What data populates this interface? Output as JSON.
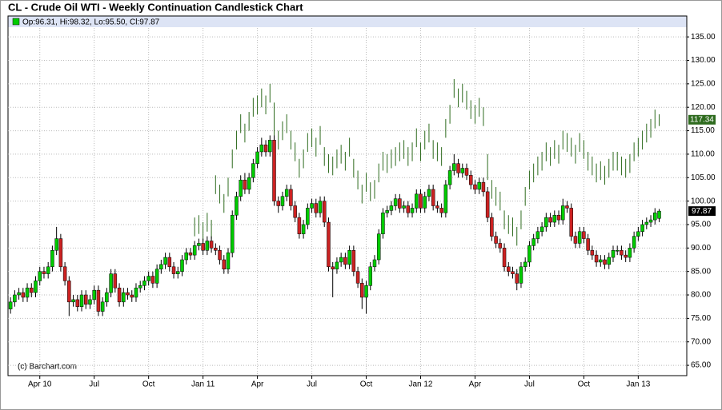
{
  "chart_data": {
    "type": "candlestick",
    "title": "CL - Crude Oil WTI - Weekly Continuation Candlestick Chart",
    "legend_text": "Op:96.31, Hi:98.32, Lo:95.50, Cl:97.87",
    "credit": "(c) Barchart.com",
    "up_color": "#00cc00",
    "down_color": "#cc2222",
    "upper_color": "#2e6b1e",
    "grid": true,
    "xlim": [
      -0.6,
      161.6
    ],
    "xticks": [
      {
        "value": 7,
        "label": "Apr 10"
      },
      {
        "value": 20,
        "label": "Jul"
      },
      {
        "value": 33,
        "label": "Oct"
      },
      {
        "value": 46,
        "label": "Jan 11"
      },
      {
        "value": 59,
        "label": "Apr"
      },
      {
        "value": 72,
        "label": "Jul"
      },
      {
        "value": 85,
        "label": "Oct"
      },
      {
        "value": 98,
        "label": "Jan 12"
      },
      {
        "value": 111,
        "label": "Apr"
      },
      {
        "value": 124,
        "label": "Jul"
      },
      {
        "value": 137,
        "label": "Oct"
      },
      {
        "value": 150,
        "label": "Jan 13"
      }
    ],
    "ylim": [
      62.8,
      136.9
    ],
    "yticks": [
      {
        "value": 65,
        "label": "65.00"
      },
      {
        "value": 70,
        "label": "70.00"
      },
      {
        "value": 75,
        "label": "75.00"
      },
      {
        "value": 80,
        "label": "80.00"
      },
      {
        "value": 85,
        "label": "85.00"
      },
      {
        "value": 90,
        "label": "90.00"
      },
      {
        "value": 95,
        "label": "95.00"
      },
      {
        "value": 100,
        "label": "100.00"
      },
      {
        "value": 105,
        "label": "105.00"
      },
      {
        "value": 110,
        "label": "110.00"
      },
      {
        "value": 115,
        "label": "115.00"
      },
      {
        "value": 120,
        "label": "120.00"
      },
      {
        "value": 125,
        "label": "125.00"
      },
      {
        "value": 130,
        "label": "130.00"
      },
      {
        "value": 135,
        "label": "135.00"
      }
    ],
    "candles": [
      [
        77.0,
        79.5,
        76.0,
        78.5
      ],
      [
        78.5,
        81.0,
        77.5,
        80.0
      ],
      [
        80.0,
        81.5,
        79.0,
        80.5
      ],
      [
        80.5,
        81.5,
        78.5,
        79.5
      ],
      [
        79.5,
        82.5,
        78.5,
        81.5
      ],
      [
        81.5,
        82.5,
        79.5,
        80.5
      ],
      [
        80.5,
        84.0,
        79.5,
        83.0
      ],
      [
        83.0,
        86.0,
        82.0,
        85.0
      ],
      [
        85.0,
        86.0,
        83.5,
        84.5
      ],
      [
        84.5,
        87.0,
        83.5,
        86.0
      ],
      [
        86.0,
        90.5,
        85.0,
        89.5
      ],
      [
        89.5,
        94.5,
        88.5,
        92.0
      ],
      [
        92.0,
        93.0,
        85.0,
        86.0
      ],
      [
        86.0,
        87.0,
        82.0,
        83.0
      ],
      [
        83.0,
        84.0,
        75.5,
        78.5
      ],
      [
        78.5,
        80.0,
        77.5,
        79.0
      ],
      [
        79.0,
        80.0,
        76.5,
        77.5
      ],
      [
        77.5,
        81.0,
        76.5,
        80.0
      ],
      [
        80.0,
        81.0,
        77.0,
        78.0
      ],
      [
        78.0,
        80.0,
        77.0,
        79.0
      ],
      [
        79.0,
        82.0,
        78.0,
        81.0
      ],
      [
        81.0,
        82.0,
        75.5,
        76.5
      ],
      [
        76.5,
        79.5,
        75.5,
        78.5
      ],
      [
        78.5,
        81.5,
        77.5,
        80.5
      ],
      [
        80.5,
        85.5,
        79.5,
        84.5
      ],
      [
        84.5,
        85.5,
        80.5,
        81.5
      ],
      [
        81.5,
        82.5,
        77.5,
        78.5
      ],
      [
        78.5,
        81.5,
        77.5,
        80.5
      ],
      [
        80.5,
        81.5,
        79.0,
        80.0
      ],
      [
        80.0,
        81.0,
        78.5,
        79.5
      ],
      [
        79.5,
        82.5,
        78.5,
        81.5
      ],
      [
        81.5,
        83.0,
        80.5,
        82.0
      ],
      [
        82.0,
        84.0,
        81.0,
        83.0
      ],
      [
        83.0,
        85.0,
        82.0,
        84.0
      ],
      [
        84.0,
        85.0,
        81.5,
        82.5
      ],
      [
        82.5,
        86.5,
        81.5,
        85.5
      ],
      [
        85.5,
        87.5,
        84.5,
        86.5
      ],
      [
        86.5,
        89.0,
        85.5,
        88.0
      ],
      [
        88.0,
        89.0,
        85.0,
        86.0
      ],
      [
        86.0,
        87.0,
        83.5,
        84.5
      ],
      [
        84.5,
        86.0,
        83.5,
        85.0
      ],
      [
        85.0,
        88.5,
        84.0,
        87.5
      ],
      [
        87.5,
        90.0,
        86.5,
        89.0
      ],
      [
        89.0,
        90.0,
        87.5,
        88.5
      ],
      [
        88.5,
        91.5,
        87.5,
        90.5
      ],
      [
        90.5,
        92.0,
        89.5,
        91.0
      ],
      [
        91.0,
        92.0,
        88.5,
        89.5
      ],
      [
        89.5,
        92.5,
        88.5,
        91.5
      ],
      [
        91.5,
        92.5,
        89.0,
        90.0
      ],
      [
        90.0,
        91.0,
        88.5,
        89.5
      ],
      [
        89.5,
        90.5,
        86.5,
        87.5
      ],
      [
        87.5,
        88.5,
        84.5,
        85.5
      ],
      [
        85.5,
        90.0,
        84.5,
        89.0
      ],
      [
        89.0,
        98.0,
        88.0,
        97.0
      ],
      [
        97.0,
        102.0,
        96.0,
        101.0
      ],
      [
        101.0,
        105.5,
        100.0,
        104.5
      ],
      [
        104.5,
        106.0,
        101.5,
        102.5
      ],
      [
        102.5,
        106.0,
        101.5,
        105.0
      ],
      [
        105.0,
        109.0,
        104.0,
        108.0
      ],
      [
        108.0,
        111.5,
        107.0,
        110.5
      ],
      [
        110.5,
        113.5,
        109.5,
        112.0
      ],
      [
        112.0,
        113.0,
        109.5,
        110.5
      ],
      [
        110.5,
        114.0,
        109.5,
        113.0
      ],
      [
        113.0,
        114.0,
        99.0,
        100.0
      ],
      [
        100.0,
        101.0,
        97.5,
        99.0
      ],
      [
        99.0,
        102.0,
        98.0,
        101.0
      ],
      [
        101.0,
        103.5,
        100.0,
        102.5
      ],
      [
        102.5,
        103.5,
        98.0,
        99.0
      ],
      [
        99.0,
        100.0,
        95.5,
        96.5
      ],
      [
        96.5,
        97.5,
        92.0,
        93.0
      ],
      [
        93.0,
        96.0,
        92.0,
        95.0
      ],
      [
        95.0,
        99.5,
        94.0,
        98.5
      ],
      [
        98.5,
        100.5,
        97.5,
        99.5
      ],
      [
        99.5,
        100.5,
        96.5,
        97.5
      ],
      [
        97.5,
        101.0,
        96.5,
        100.0
      ],
      [
        100.0,
        101.0,
        94.5,
        95.5
      ],
      [
        95.5,
        96.5,
        85.0,
        86.0
      ],
      [
        86.0,
        87.0,
        79.5,
        85.5
      ],
      [
        85.5,
        88.0,
        84.5,
        87.0
      ],
      [
        87.0,
        89.0,
        86.0,
        88.0
      ],
      [
        88.0,
        89.0,
        85.5,
        86.5
      ],
      [
        86.5,
        90.5,
        85.5,
        89.5
      ],
      [
        89.5,
        90.5,
        84.0,
        85.0
      ],
      [
        85.0,
        86.0,
        81.5,
        82.5
      ],
      [
        82.5,
        83.5,
        77.0,
        79.5
      ],
      [
        79.5,
        83.0,
        76.0,
        82.0
      ],
      [
        82.0,
        87.0,
        81.0,
        86.0
      ],
      [
        86.0,
        88.5,
        85.0,
        87.5
      ],
      [
        87.5,
        94.0,
        86.5,
        93.0
      ],
      [
        93.0,
        98.5,
        92.0,
        97.5
      ],
      [
        97.5,
        99.0,
        96.5,
        98.0
      ],
      [
        98.0,
        100.0,
        97.0,
        99.0
      ],
      [
        99.0,
        101.5,
        98.0,
        100.5
      ],
      [
        100.5,
        101.5,
        97.5,
        98.5
      ],
      [
        98.5,
        100.0,
        97.5,
        99.0
      ],
      [
        99.0,
        100.0,
        96.5,
        97.5
      ],
      [
        97.5,
        99.5,
        96.5,
        98.5
      ],
      [
        98.5,
        102.5,
        97.5,
        101.5
      ],
      [
        101.5,
        102.5,
        97.5,
        98.5
      ],
      [
        98.5,
        102.0,
        97.5,
        101.0
      ],
      [
        101.0,
        103.5,
        100.0,
        102.5
      ],
      [
        102.5,
        103.5,
        98.0,
        99.0
      ],
      [
        99.0,
        100.0,
        97.5,
        98.5
      ],
      [
        98.5,
        99.5,
        96.5,
        97.5
      ],
      [
        97.5,
        104.5,
        96.5,
        103.5
      ],
      [
        103.5,
        107.5,
        102.5,
        106.5
      ],
      [
        106.5,
        110.0,
        105.5,
        108.0
      ],
      [
        108.0,
        109.0,
        105.0,
        106.0
      ],
      [
        106.0,
        108.0,
        105.0,
        107.0
      ],
      [
        107.0,
        108.0,
        104.5,
        105.5
      ],
      [
        105.5,
        106.5,
        102.5,
        103.5
      ],
      [
        103.5,
        104.5,
        101.5,
        102.5
      ],
      [
        102.5,
        105.0,
        101.5,
        104.0
      ],
      [
        104.0,
        105.0,
        101.0,
        102.0
      ],
      [
        102.0,
        103.0,
        95.5,
        96.5
      ],
      [
        96.5,
        97.5,
        91.5,
        92.5
      ],
      [
        92.5,
        93.5,
        90.0,
        91.0
      ],
      [
        91.0,
        92.0,
        89.0,
        90.0
      ],
      [
        90.0,
        91.0,
        85.0,
        86.0
      ],
      [
        86.0,
        87.0,
        84.0,
        85.0
      ],
      [
        85.0,
        86.0,
        83.5,
        84.5
      ],
      [
        84.5,
        85.5,
        81.0,
        82.5
      ],
      [
        82.5,
        87.0,
        81.5,
        86.0
      ],
      [
        86.0,
        88.0,
        85.0,
        87.0
      ],
      [
        87.0,
        91.5,
        86.0,
        90.5
      ],
      [
        90.5,
        93.0,
        89.5,
        92.0
      ],
      [
        92.0,
        94.5,
        91.0,
        93.5
      ],
      [
        93.5,
        95.5,
        92.5,
        94.5
      ],
      [
        94.5,
        97.5,
        93.5,
        96.5
      ],
      [
        96.5,
        97.5,
        94.5,
        95.5
      ],
      [
        95.5,
        98.0,
        94.5,
        97.0
      ],
      [
        97.0,
        98.0,
        95.0,
        96.0
      ],
      [
        96.0,
        100.5,
        95.0,
        99.0
      ],
      [
        99.0,
        100.0,
        97.5,
        98.5
      ],
      [
        98.5,
        99.5,
        91.5,
        92.5
      ],
      [
        92.5,
        93.5,
        90.0,
        91.0
      ],
      [
        91.0,
        94.5,
        90.0,
        93.5
      ],
      [
        93.5,
        94.5,
        91.0,
        92.0
      ],
      [
        92.0,
        93.0,
        88.5,
        89.5
      ],
      [
        89.5,
        90.5,
        87.5,
        88.5
      ],
      [
        88.5,
        89.5,
        86.0,
        87.0
      ],
      [
        87.0,
        88.5,
        86.0,
        87.5
      ],
      [
        87.5,
        88.5,
        85.5,
        86.5
      ],
      [
        86.5,
        89.0,
        85.5,
        88.0
      ],
      [
        88.0,
        90.5,
        87.0,
        89.5
      ],
      [
        89.5,
        90.5,
        88.5,
        89.5
      ],
      [
        89.5,
        90.5,
        87.5,
        88.5
      ],
      [
        88.5,
        89.5,
        87.0,
        88.0
      ],
      [
        88.0,
        91.0,
        87.0,
        90.0
      ],
      [
        90.0,
        93.5,
        89.0,
        92.5
      ],
      [
        92.5,
        94.5,
        91.5,
        93.5
      ],
      [
        93.5,
        96.0,
        92.5,
        95.0
      ],
      [
        95.0,
        96.5,
        94.0,
        95.5
      ],
      [
        95.5,
        97.0,
        94.5,
        96.0
      ],
      [
        96.0,
        98.5,
        95.0,
        97.5
      ],
      [
        96.31,
        98.32,
        95.5,
        97.87
      ]
    ],
    "upper": [
      null,
      null,
      null,
      null,
      null,
      null,
      null,
      null,
      null,
      null,
      null,
      null,
      null,
      null,
      null,
      null,
      null,
      null,
      null,
      null,
      null,
      null,
      null,
      null,
      null,
      null,
      null,
      null,
      null,
      null,
      null,
      null,
      null,
      null,
      null,
      null,
      null,
      null,
      null,
      null,
      null,
      null,
      null,
      null,
      [
        96.5,
        92.5
      ],
      [
        97,
        93
      ],
      [
        95.5,
        91.5
      ],
      [
        97.5,
        93.5
      ],
      [
        96,
        92
      ],
      [
        105.5,
        101.5
      ],
      [
        103.5,
        99.5
      ],
      [
        101.5,
        97.5
      ],
      [
        105,
        101
      ],
      [
        111,
        107
      ],
      [
        115,
        111
      ],
      [
        118.5,
        114.5
      ],
      [
        116.5,
        112.5
      ],
      [
        119,
        115
      ],
      [
        122,
        118
      ],
      [
        122.5,
        118.5
      ],
      [
        124,
        120
      ],
      [
        122.5,
        118.5
      ],
      [
        125,
        121
      ],
      [
        121,
        112
      ],
      [
        115,
        111
      ],
      [
        117,
        113
      ],
      [
        118.5,
        114.5
      ],
      [
        115,
        111
      ],
      [
        112.5,
        108.5
      ],
      [
        109,
        105
      ],
      [
        111,
        107
      ],
      [
        114.5,
        110.5
      ],
      [
        115.5,
        111.5
      ],
      [
        113.5,
        109.5
      ],
      [
        116,
        112
      ],
      [
        111.5,
        107.5
      ],
      [
        110,
        106
      ],
      [
        109.5,
        105.5
      ],
      [
        111,
        107
      ],
      [
        112,
        108
      ],
      [
        110.5,
        106.5
      ],
      [
        113.5,
        109.5
      ],
      [
        109,
        105
      ],
      [
        106.5,
        102.5
      ],
      [
        103.5,
        99.5
      ],
      [
        106,
        102
      ],
      [
        104,
        100
      ],
      [
        104.5,
        100.5
      ],
      [
        108,
        104
      ],
      [
        110.5,
        106.5
      ],
      [
        110,
        106
      ],
      [
        111,
        107
      ],
      [
        111.5,
        107.5
      ],
      [
        112.5,
        108.5
      ],
      [
        113,
        109
      ],
      [
        111.5,
        107.5
      ],
      [
        112.5,
        108.5
      ],
      [
        115.5,
        111.5
      ],
      [
        112.5,
        108.5
      ],
      [
        115,
        111
      ],
      [
        116.5,
        112.5
      ],
      [
        113,
        109
      ],
      [
        112.5,
        108.5
      ],
      [
        111.5,
        107.5
      ],
      [
        117.5,
        113.5
      ],
      [
        120.5,
        116.5
      ],
      [
        126,
        122
      ],
      [
        124,
        120
      ],
      [
        125,
        121
      ],
      [
        123.5,
        119.5
      ],
      [
        121.5,
        117.5
      ],
      [
        120.5,
        116.5
      ],
      [
        122,
        118
      ],
      [
        120,
        116
      ],
      [
        110,
        104.5
      ],
      [
        104.5,
        100.5
      ],
      [
        103,
        99
      ],
      [
        102,
        98
      ],
      [
        98,
        94
      ],
      [
        97,
        93
      ],
      [
        96.5,
        92.5
      ],
      [
        94.5,
        90.5
      ],
      [
        98,
        94
      ],
      [
        103,
        99
      ],
      [
        106.5,
        102.5
      ],
      [
        108,
        104
      ],
      [
        109.5,
        105.5
      ],
      [
        110.5,
        106.5
      ],
      [
        112.5,
        108.5
      ],
      [
        111.5,
        107.5
      ],
      [
        113,
        109
      ],
      [
        112,
        108
      ],
      [
        115,
        111
      ],
      [
        114.5,
        110.5
      ],
      [
        113.5,
        109.5
      ],
      [
        112,
        108
      ],
      [
        114.5,
        110.5
      ],
      [
        113,
        109
      ],
      [
        110.5,
        106.5
      ],
      [
        109.5,
        105.5
      ],
      [
        108,
        104
      ],
      [
        108.5,
        104.5
      ],
      [
        107.5,
        103.5
      ],
      [
        109,
        105
      ],
      [
        110.5,
        106.5
      ],
      [
        110.5,
        106.5
      ],
      [
        109.5,
        105.5
      ],
      [
        109,
        105
      ],
      [
        110,
        106
      ],
      [
        112.5,
        108.5
      ],
      [
        113.5,
        109.5
      ],
      [
        115,
        111
      ],
      [
        116.5,
        112.5
      ],
      [
        117.5,
        113.5
      ],
      [
        119.5,
        115.5
      ],
      [
        118.5,
        116.0
      ]
    ],
    "upper_last": 117.34
  }
}
